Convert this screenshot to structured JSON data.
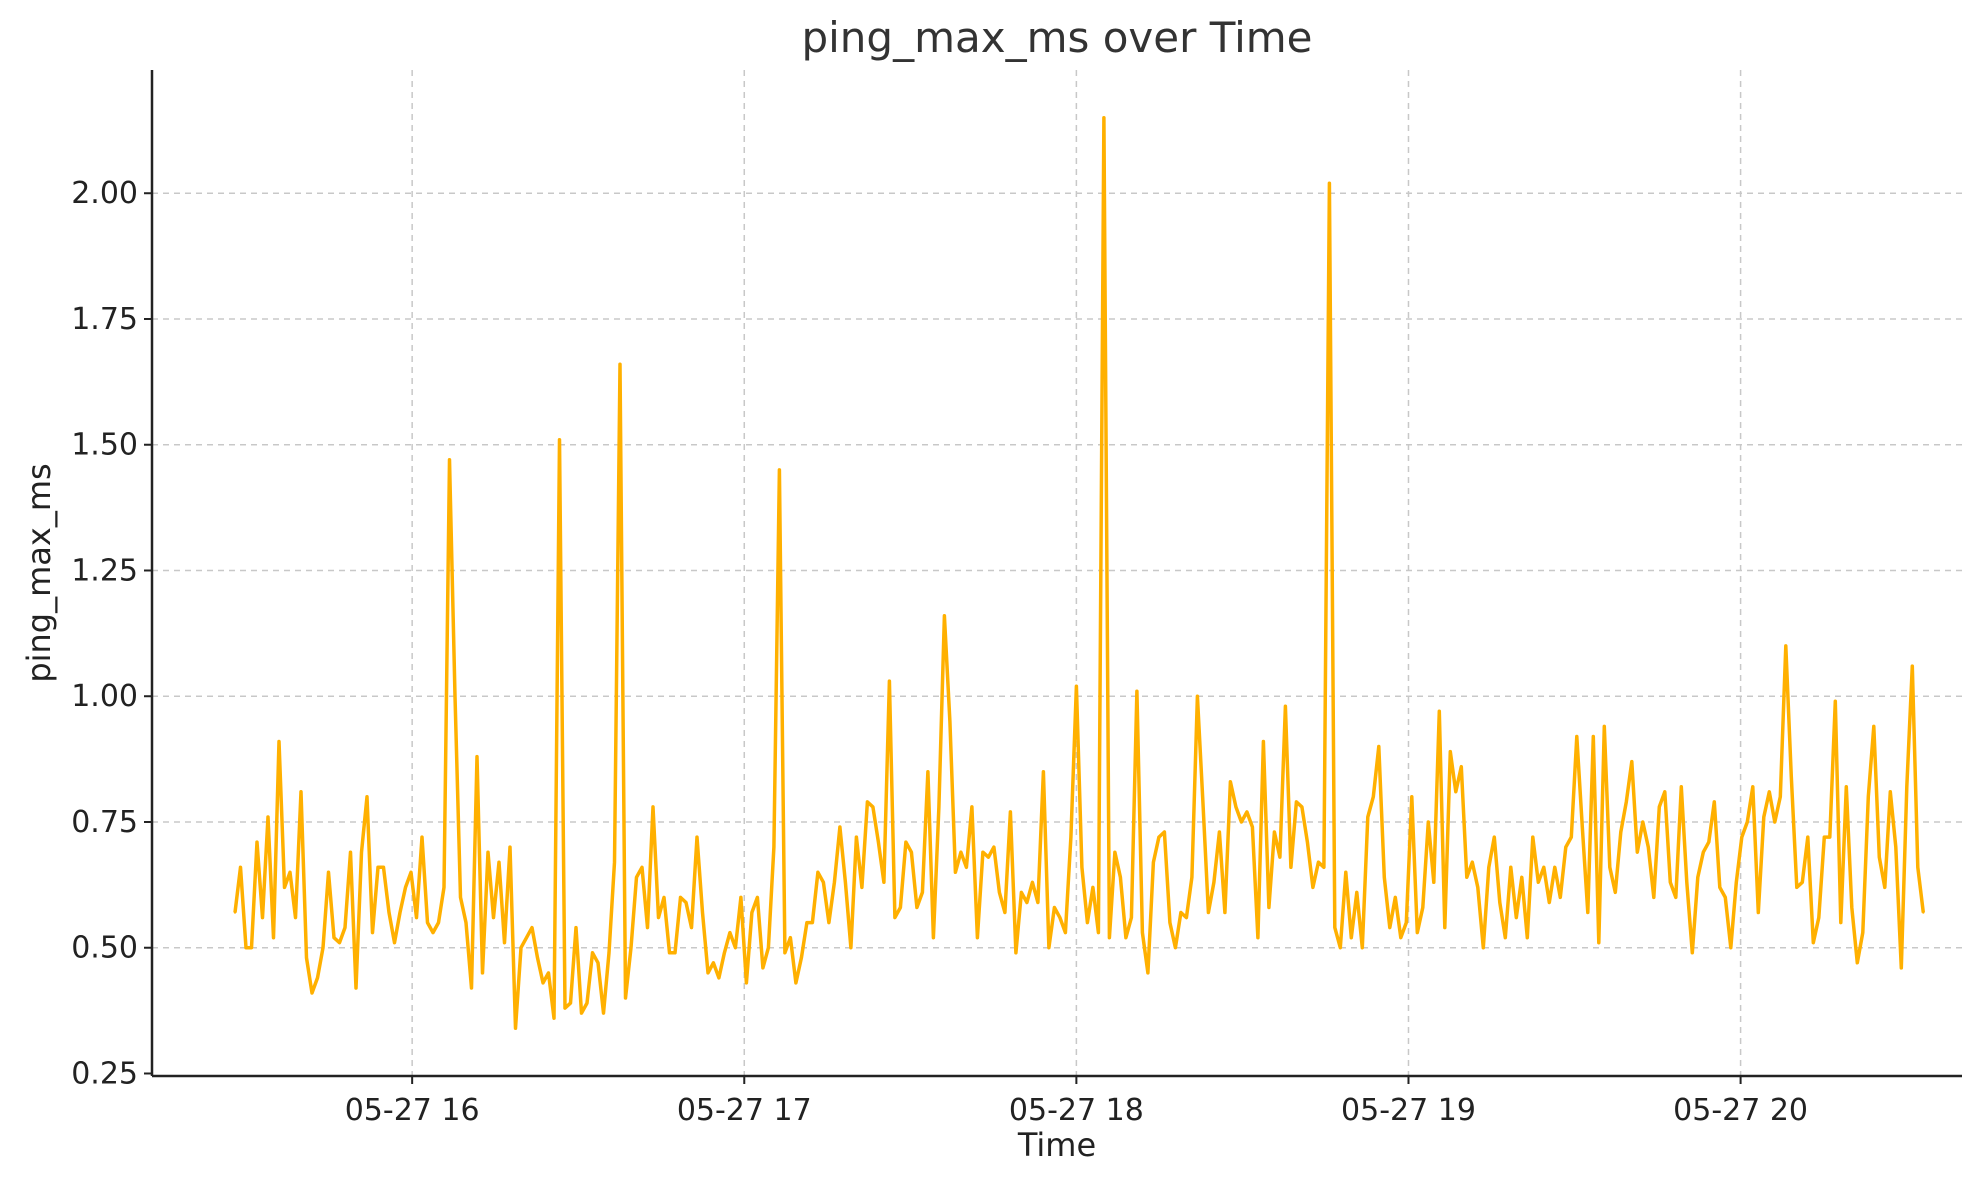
{
  "chart_data": {
    "type": "line",
    "title": "ping_max_ms over Time",
    "xlabel": "Time",
    "ylabel": "ping_max_ms",
    "grid": true,
    "xlim": [
      "2024-05-27 15:13",
      "2024-05-27 20:40"
    ],
    "ylim": [
      0.245,
      2.245
    ],
    "yticks": [
      "0.25",
      "0.50",
      "0.75",
      "1.00",
      "1.25",
      "1.50",
      "1.75",
      "2.00"
    ],
    "xticks": [
      {
        "t": "2024-05-27 16:00",
        "label": "05-27 16"
      },
      {
        "t": "2024-05-27 17:00",
        "label": "05-27 17"
      },
      {
        "t": "2024-05-27 18:00",
        "label": "05-27 18"
      },
      {
        "t": "2024-05-27 19:00",
        "label": "05-27 19"
      },
      {
        "t": "2024-05-27 20:00",
        "label": "05-27 20"
      }
    ],
    "series": [
      {
        "color": "#FFB000",
        "x_start": "2024-05-27 15:28",
        "x_end": "2024-05-27 20:33",
        "values": [
          0.57,
          0.66,
          0.5,
          0.5,
          0.71,
          0.56,
          0.76,
          0.52,
          0.91,
          0.62,
          0.65,
          0.56,
          0.81,
          0.48,
          0.41,
          0.44,
          0.5,
          0.65,
          0.52,
          0.51,
          0.54,
          0.69,
          0.42,
          0.69,
          0.8,
          0.53,
          0.66,
          0.66,
          0.57,
          0.51,
          0.57,
          0.62,
          0.65,
          0.56,
          0.72,
          0.55,
          0.53,
          0.55,
          0.62,
          1.47,
          1.0,
          0.6,
          0.55,
          0.42,
          0.88,
          0.45,
          0.69,
          0.56,
          0.67,
          0.51,
          0.7,
          0.34,
          0.5,
          0.52,
          0.54,
          0.48,
          0.43,
          0.45,
          0.36,
          1.51,
          0.38,
          0.39,
          0.54,
          0.37,
          0.39,
          0.49,
          0.47,
          0.37,
          0.49,
          0.67,
          1.66,
          0.4,
          0.5,
          0.64,
          0.66,
          0.54,
          0.78,
          0.56,
          0.6,
          0.49,
          0.49,
          0.6,
          0.59,
          0.54,
          0.72,
          0.57,
          0.45,
          0.47,
          0.44,
          0.49,
          0.53,
          0.5,
          0.6,
          0.43,
          0.57,
          0.6,
          0.46,
          0.5,
          0.7,
          1.45,
          0.49,
          0.52,
          0.43,
          0.48,
          0.55,
          0.55,
          0.65,
          0.63,
          0.55,
          0.63,
          0.74,
          0.63,
          0.5,
          0.72,
          0.62,
          0.79,
          0.78,
          0.71,
          0.63,
          1.03,
          0.56,
          0.58,
          0.71,
          0.69,
          0.58,
          0.61,
          0.85,
          0.52,
          0.78,
          1.16,
          0.95,
          0.65,
          0.69,
          0.66,
          0.78,
          0.52,
          0.69,
          0.68,
          0.7,
          0.61,
          0.57,
          0.77,
          0.49,
          0.61,
          0.59,
          0.63,
          0.59,
          0.85,
          0.5,
          0.58,
          0.56,
          0.53,
          0.72,
          1.02,
          0.66,
          0.55,
          0.62,
          0.53,
          2.15,
          0.52,
          0.69,
          0.64,
          0.52,
          0.56,
          1.01,
          0.53,
          0.45,
          0.67,
          0.72,
          0.73,
          0.55,
          0.5,
          0.57,
          0.56,
          0.64,
          1.0,
          0.79,
          0.57,
          0.63,
          0.73,
          0.57,
          0.83,
          0.78,
          0.75,
          0.77,
          0.74,
          0.52,
          0.91,
          0.58,
          0.73,
          0.68,
          0.98,
          0.66,
          0.79,
          0.78,
          0.71,
          0.62,
          0.67,
          0.66,
          2.02,
          0.54,
          0.5,
          0.65,
          0.52,
          0.61,
          0.5,
          0.76,
          0.8,
          0.9,
          0.64,
          0.54,
          0.6,
          0.52,
          0.55,
          0.8,
          0.53,
          0.58,
          0.75,
          0.63,
          0.97,
          0.54,
          0.89,
          0.81,
          0.86,
          0.64,
          0.67,
          0.62,
          0.5,
          0.66,
          0.72,
          0.59,
          0.52,
          0.66,
          0.56,
          0.64,
          0.52,
          0.72,
          0.63,
          0.66,
          0.59,
          0.66,
          0.6,
          0.7,
          0.72,
          0.92,
          0.74,
          0.57,
          0.92,
          0.51,
          0.94,
          0.66,
          0.61,
          0.73,
          0.79,
          0.87,
          0.69,
          0.75,
          0.7,
          0.6,
          0.78,
          0.81,
          0.63,
          0.6,
          0.82,
          0.63,
          0.49,
          0.64,
          0.69,
          0.71,
          0.79,
          0.62,
          0.6,
          0.5,
          0.63,
          0.72,
          0.75,
          0.82,
          0.57,
          0.76,
          0.81,
          0.75,
          0.8,
          1.1,
          0.84,
          0.62,
          0.63,
          0.72,
          0.51,
          0.56,
          0.72,
          0.72,
          0.99,
          0.55,
          0.82,
          0.58,
          0.47,
          0.53,
          0.8,
          0.94,
          0.68,
          0.62,
          0.81,
          0.7,
          0.46,
          0.82,
          1.06,
          0.66,
          0.57
        ]
      }
    ]
  }
}
